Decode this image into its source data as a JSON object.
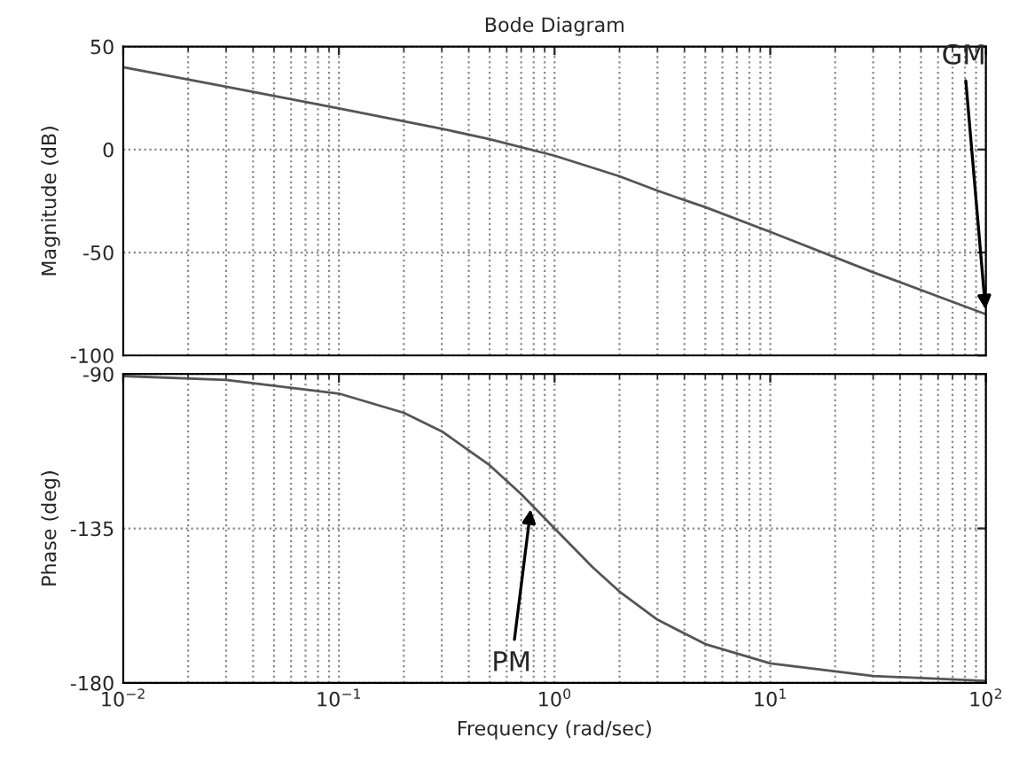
{
  "chart_data": [
    {
      "type": "line",
      "title": "Bode Diagram",
      "ylabel": "Magnitude (dB)",
      "log": "x",
      "grid": true,
      "tick_labels": "y",
      "xlim": [
        0.01,
        100
      ],
      "ylim": [
        -100,
        50
      ],
      "yticks": [
        50,
        0,
        -50,
        -100
      ],
      "x": [
        0.01,
        0.03,
        0.1,
        0.3,
        0.5,
        1,
        2,
        3,
        5,
        10,
        30,
        100
      ],
      "series": [
        {
          "color": "#555555",
          "values": [
            40,
            30.5,
            20,
            10.1,
            5,
            -3,
            -13,
            -20,
            -28,
            -40,
            -59.6,
            -80
          ]
        }
      ],
      "annotations": [
        {
          "text": "GM",
          "x": 100,
          "y": -80
        }
      ]
    },
    {
      "type": "line",
      "xlabel": "Frequency (rad/sec)",
      "ylabel": "Phase (deg)",
      "log": "x",
      "grid": true,
      "xlim": [
        0.01,
        100
      ],
      "ylim": [
        -180,
        -90
      ],
      "yticks": [
        -180,
        -135,
        -90
      ],
      "xticks": [
        {
          "value": 0.01,
          "label": "10$^{−2}$"
        },
        {
          "value": 0.1,
          "label": "10$^{−1}$"
        },
        {
          "value": 1,
          "label": "10$^{0}$"
        },
        {
          "value": 10,
          "label": "10$^{1}$"
        },
        {
          "value": 100,
          "label": "10$^{2}$"
        }
      ],
      "x": [
        0.01,
        0.03,
        0.1,
        0.2,
        0.3,
        0.5,
        0.7,
        1,
        1.5,
        2,
        3,
        5,
        10,
        30,
        100
      ],
      "series": [
        {
          "color": "#555555",
          "values": [
            -90.6,
            -91.7,
            -95.7,
            -101.3,
            -106.7,
            -116.6,
            -125,
            -135,
            -146.3,
            -153.4,
            -161.6,
            -168.7,
            -174.3,
            -178,
            -179.4
          ]
        }
      ],
      "annotations": [
        {
          "text": "PM",
          "x": 0.78,
          "y": -128
        }
      ]
    }
  ]
}
